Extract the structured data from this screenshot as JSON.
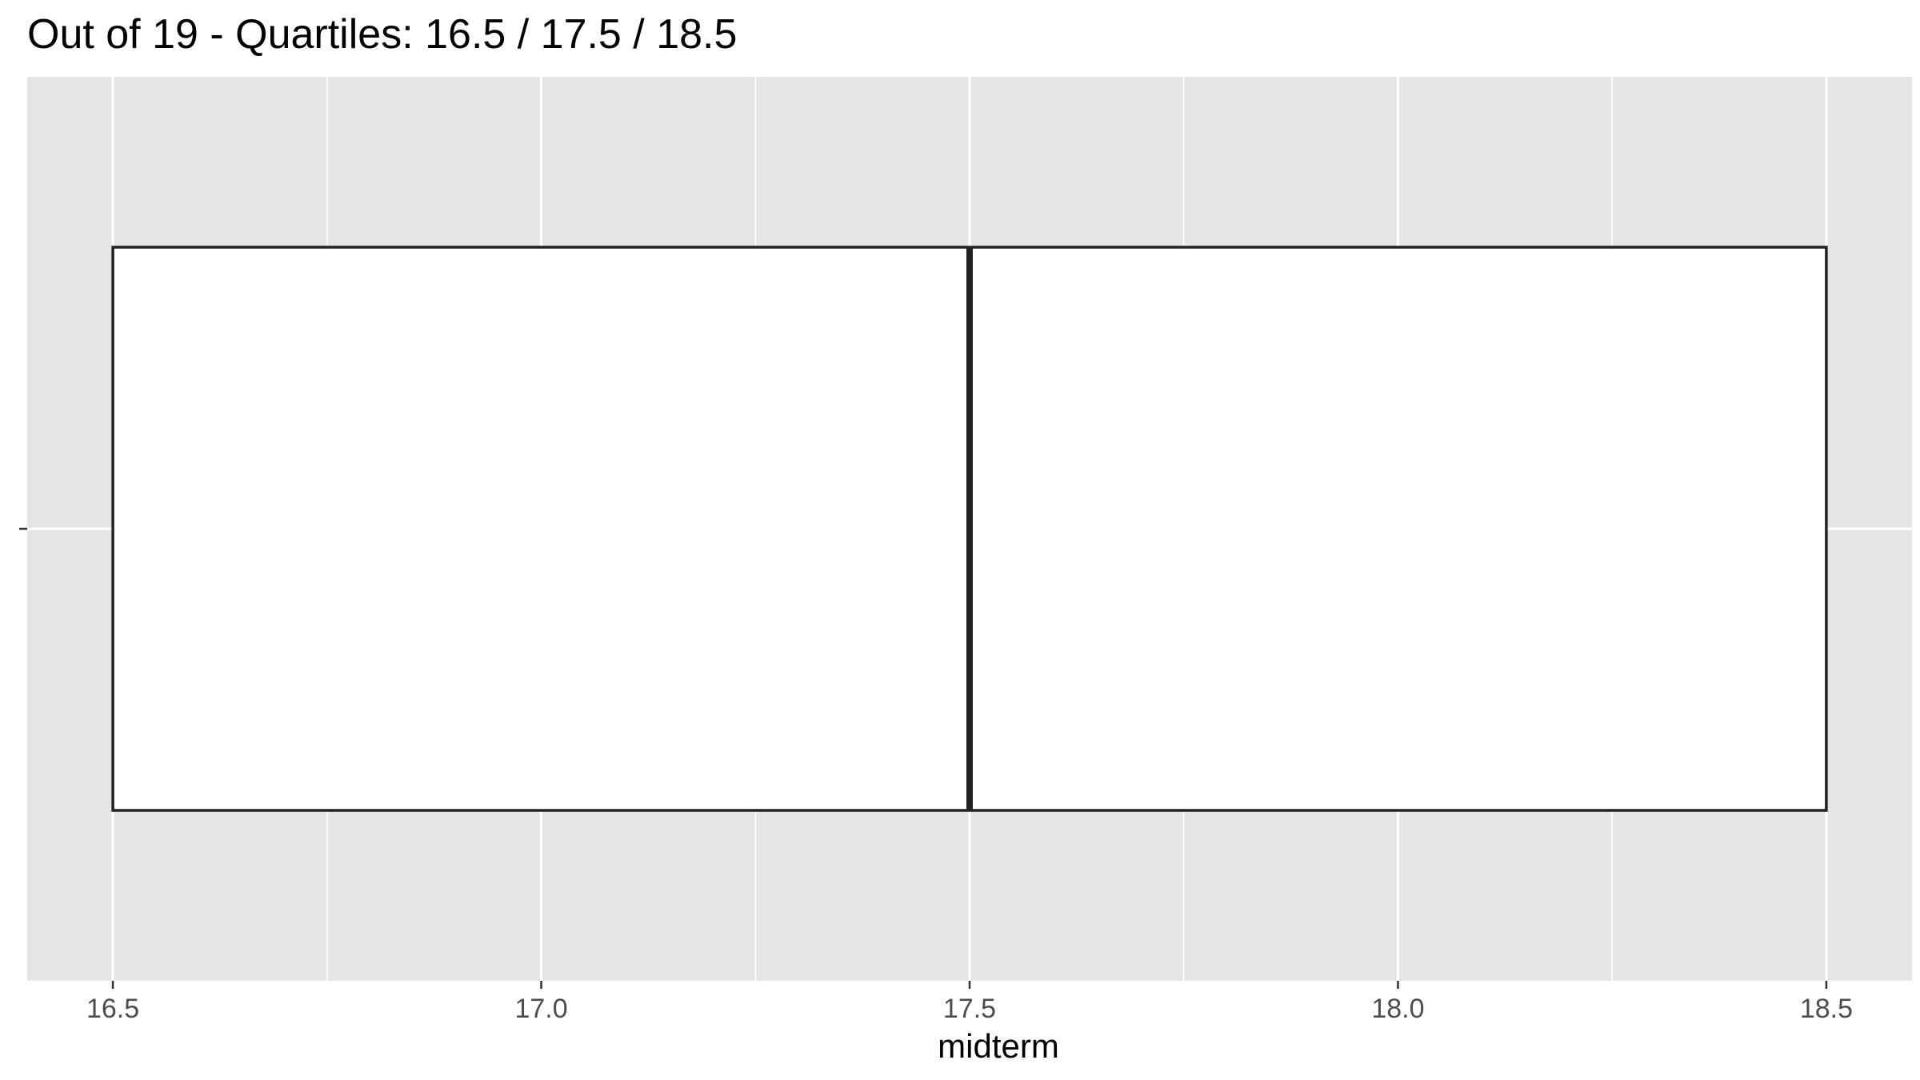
{
  "chart_data": {
    "type": "boxplot",
    "title": "Out of 19 - Quartiles: 16.5 / 17.5 / 18.5",
    "xlabel": "midterm",
    "ylabel": "",
    "xlim": [
      16.4,
      18.6
    ],
    "x_ticks": [
      16.5,
      17.0,
      17.5,
      18.0,
      18.5
    ],
    "x_tick_labels": [
      "16.5",
      "17.0",
      "17.5",
      "18.0",
      "18.5"
    ],
    "x_minor_breaks": [
      16.75,
      17.25,
      17.75,
      18.25
    ],
    "boxes": [
      {
        "q1": 16.5,
        "median": 17.5,
        "q3": 18.5,
        "whisker_low": 16.5,
        "whisker_high": 18.5
      }
    ],
    "grid": true,
    "legend": "none",
    "colors": {
      "panel_background": "#e5e5e5",
      "grid": "#ffffff",
      "box_fill": "#ffffff",
      "box_outline": "#222222",
      "tick_label": "#4d4d4d",
      "tick_mark": "#333333"
    }
  }
}
